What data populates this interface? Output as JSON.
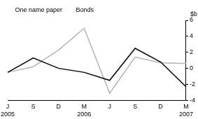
{
  "chart_data": {
    "type": "line",
    "y_label": "$b",
    "categories": [
      "J 2005",
      "S",
      "D",
      "M 2006",
      "J",
      "S",
      "D",
      "M 2007"
    ],
    "series": [
      {
        "name": "One name paper",
        "color": "#000000",
        "values": [
          -0.5,
          1.3,
          0.0,
          -0.5,
          -1.5,
          2.5,
          0.8,
          -2.3
        ]
      },
      {
        "name": "Bonds",
        "color": "#b4b4b4",
        "values": [
          -0.5,
          0.2,
          2.3,
          5.0,
          -3.1,
          1.4,
          0.7,
          0.6
        ]
      }
    ],
    "ylim": [
      -4,
      6
    ],
    "yticks": [
      -4,
      -2,
      0,
      2,
      4,
      6
    ],
    "grid": false,
    "legend": "upper left"
  }
}
